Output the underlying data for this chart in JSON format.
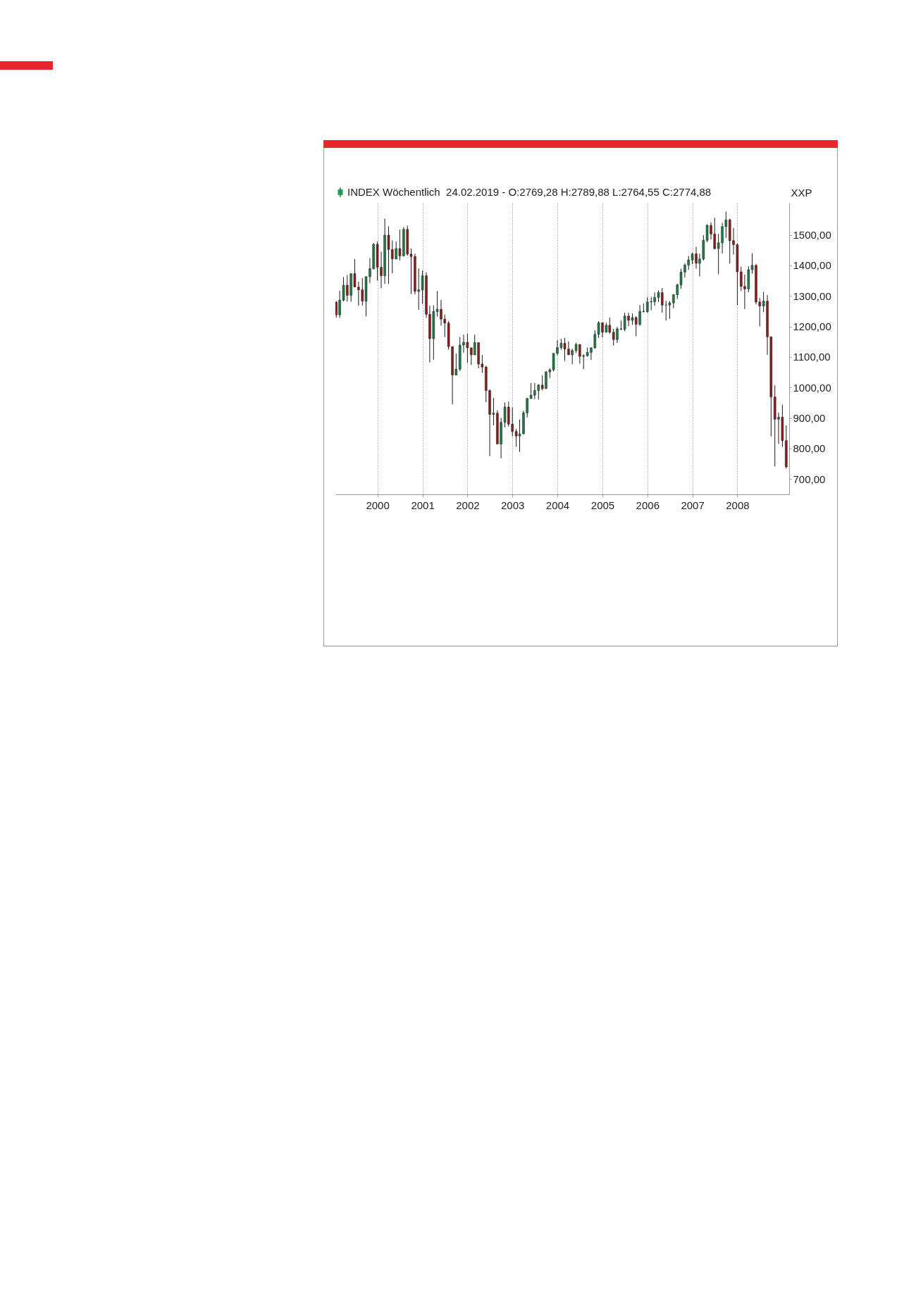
{
  "chart_data": {
    "type": "candlestick",
    "title": "INDEX Wöchentlich  24.02.2019 - O:2769,28 H:2789,88 L:2764,55 C:2774,88",
    "ylabel": "XXP",
    "xlim": [
      "1999-01-25",
      "2009-02-25"
    ],
    "xticks": [
      {
        "value": "2000",
        "label": "2000"
      },
      {
        "value": "2001",
        "label": "2001"
      },
      {
        "value": "2002",
        "label": "2002"
      },
      {
        "value": "2003",
        "label": "2003"
      },
      {
        "value": "2004",
        "label": "2004"
      },
      {
        "value": "2005",
        "label": "2005"
      },
      {
        "value": "2006",
        "label": "2006"
      },
      {
        "value": "2007",
        "label": "2007"
      },
      {
        "value": "2008",
        "label": "2008"
      }
    ],
    "ylim": [
      650,
      1605
    ],
    "yticks": [
      {
        "value": 700,
        "label": "700,00"
      },
      {
        "value": 800,
        "label": "800,00"
      },
      {
        "value": 900,
        "label": "900,00"
      },
      {
        "value": 1000,
        "label": "1000,00"
      },
      {
        "value": 1100,
        "label": "1100,00"
      },
      {
        "value": 1200,
        "label": "1200,00"
      },
      {
        "value": 1300,
        "label": "1300,00"
      },
      {
        "value": 1400,
        "label": "1400,00"
      },
      {
        "value": 1500,
        "label": "1500,00"
      }
    ],
    "grid": "x",
    "x": [
      "1999-02",
      "1999-03",
      "1999-04",
      "1999-05",
      "1999-06",
      "1999-07",
      "1999-08",
      "1999-09",
      "1999-10",
      "1999-11",
      "1999-12",
      "2000-01",
      "2000-02",
      "2000-03",
      "2000-04",
      "2000-05",
      "2000-06",
      "2000-07",
      "2000-08",
      "2000-09",
      "2000-10",
      "2000-11",
      "2000-12",
      "2001-01",
      "2001-02",
      "2001-03",
      "2001-04",
      "2001-05",
      "2001-06",
      "2001-07",
      "2001-08",
      "2001-09",
      "2001-10",
      "2001-11",
      "2001-12",
      "2002-01",
      "2002-02",
      "2002-03",
      "2002-04",
      "2002-05",
      "2002-06",
      "2002-07",
      "2002-08",
      "2002-09",
      "2002-10",
      "2002-11",
      "2002-12",
      "2003-01",
      "2003-02",
      "2003-03",
      "2003-04",
      "2003-05",
      "2003-06",
      "2003-07",
      "2003-08",
      "2003-09",
      "2003-10",
      "2003-11",
      "2003-12",
      "2004-01",
      "2004-02",
      "2004-03",
      "2004-04",
      "2004-05",
      "2004-06",
      "2004-07",
      "2004-08",
      "2004-09",
      "2004-10",
      "2004-11",
      "2004-12",
      "2005-01",
      "2005-02",
      "2005-03",
      "2005-04",
      "2005-05",
      "2005-06",
      "2005-07",
      "2005-08",
      "2005-09",
      "2005-10",
      "2005-11",
      "2005-12",
      "2006-01",
      "2006-02",
      "2006-03",
      "2006-04",
      "2006-05",
      "2006-06",
      "2006-07",
      "2006-08",
      "2006-09",
      "2006-10",
      "2006-11",
      "2006-12",
      "2007-01",
      "2007-02",
      "2007-03",
      "2007-04",
      "2007-05",
      "2007-06",
      "2007-07",
      "2007-08",
      "2007-09",
      "2007-10",
      "2007-11",
      "2007-12",
      "2008-01",
      "2008-02",
      "2008-03",
      "2008-04",
      "2008-05",
      "2008-06",
      "2008-07",
      "2008-08",
      "2008-09",
      "2008-10",
      "2008-11",
      "2008-12",
      "2009-01",
      "2009-02"
    ],
    "ohlc": [
      [
        1280,
        1283,
        1229,
        1238
      ],
      [
        1238,
        1317,
        1228,
        1286
      ],
      [
        1286,
        1362,
        1282,
        1335
      ],
      [
        1335,
        1368,
        1281,
        1302
      ],
      [
        1302,
        1373,
        1281,
        1373
      ],
      [
        1373,
        1421,
        1329,
        1329
      ],
      [
        1329,
        1347,
        1268,
        1320
      ],
      [
        1320,
        1358,
        1268,
        1283
      ],
      [
        1283,
        1364,
        1233,
        1363
      ],
      [
        1363,
        1424,
        1342,
        1389
      ],
      [
        1389,
        1473,
        1387,
        1469
      ],
      [
        1469,
        1478,
        1350,
        1394
      ],
      [
        1394,
        1445,
        1325,
        1366
      ],
      [
        1366,
        1553,
        1339,
        1499
      ],
      [
        1499,
        1528,
        1339,
        1452
      ],
      [
        1452,
        1482,
        1374,
        1421
      ],
      [
        1421,
        1478,
        1420,
        1455
      ],
      [
        1455,
        1517,
        1416,
        1431
      ],
      [
        1431,
        1525,
        1430,
        1518
      ],
      [
        1518,
        1530,
        1432,
        1437
      ],
      [
        1437,
        1455,
        1306,
        1429
      ],
      [
        1429,
        1438,
        1305,
        1315
      ],
      [
        1315,
        1390,
        1254,
        1320
      ],
      [
        1320,
        1383,
        1274,
        1366
      ],
      [
        1366,
        1377,
        1228,
        1240
      ],
      [
        1240,
        1268,
        1082,
        1160
      ],
      [
        1160,
        1269,
        1091,
        1249
      ],
      [
        1249,
        1316,
        1232,
        1256
      ],
      [
        1256,
        1287,
        1203,
        1224
      ],
      [
        1224,
        1239,
        1165,
        1211
      ],
      [
        1211,
        1218,
        1124,
        1134
      ],
      [
        1134,
        1135,
        945,
        1041
      ],
      [
        1041,
        1111,
        1040,
        1060
      ],
      [
        1060,
        1165,
        1054,
        1139
      ],
      [
        1139,
        1173,
        1114,
        1148
      ],
      [
        1148,
        1176,
        1081,
        1130
      ],
      [
        1130,
        1131,
        1074,
        1107
      ],
      [
        1107,
        1173,
        1106,
        1147
      ],
      [
        1147,
        1147,
        1063,
        1077
      ],
      [
        1077,
        1107,
        1048,
        1067
      ],
      [
        1067,
        1071,
        952,
        990
      ],
      [
        990,
        994,
        775,
        912
      ],
      [
        912,
        966,
        876,
        916
      ],
      [
        916,
        925,
        815,
        815
      ],
      [
        815,
        901,
        768,
        886
      ],
      [
        886,
        951,
        869,
        936
      ],
      [
        936,
        954,
        872,
        880
      ],
      [
        880,
        935,
        840,
        856
      ],
      [
        856,
        864,
        806,
        841
      ],
      [
        841,
        895,
        789,
        848
      ],
      [
        848,
        924,
        847,
        917
      ],
      [
        917,
        966,
        902,
        964
      ],
      [
        964,
        1015,
        963,
        975
      ],
      [
        975,
        1015,
        962,
        990
      ],
      [
        990,
        1011,
        960,
        1008
      ],
      [
        1008,
        1040,
        990,
        996
      ],
      [
        996,
        1054,
        996,
        1051
      ],
      [
        1051,
        1063,
        1031,
        1058
      ],
      [
        1058,
        1112,
        1053,
        1112
      ],
      [
        1112,
        1155,
        1105,
        1131
      ],
      [
        1131,
        1159,
        1124,
        1145
      ],
      [
        1145,
        1163,
        1087,
        1126
      ],
      [
        1126,
        1151,
        1107,
        1107
      ],
      [
        1107,
        1127,
        1076,
        1121
      ],
      [
        1121,
        1146,
        1113,
        1141
      ],
      [
        1141,
        1141,
        1078,
        1102
      ],
      [
        1102,
        1109,
        1060,
        1104
      ],
      [
        1104,
        1131,
        1101,
        1115
      ],
      [
        1115,
        1131,
        1090,
        1130
      ],
      [
        1130,
        1188,
        1127,
        1174
      ],
      [
        1174,
        1217,
        1162,
        1212
      ],
      [
        1212,
        1212,
        1164,
        1181
      ],
      [
        1181,
        1212,
        1180,
        1204
      ],
      [
        1204,
        1229,
        1176,
        1181
      ],
      [
        1181,
        1192,
        1137,
        1157
      ],
      [
        1157,
        1199,
        1146,
        1192
      ],
      [
        1192,
        1219,
        1188,
        1191
      ],
      [
        1191,
        1245,
        1184,
        1234
      ],
      [
        1234,
        1245,
        1201,
        1220
      ],
      [
        1220,
        1243,
        1205,
        1229
      ],
      [
        1229,
        1233,
        1168,
        1207
      ],
      [
        1207,
        1270,
        1202,
        1249
      ],
      [
        1249,
        1275,
        1246,
        1248
      ],
      [
        1248,
        1295,
        1245,
        1280
      ],
      [
        1280,
        1297,
        1253,
        1281
      ],
      [
        1281,
        1311,
        1268,
        1295
      ],
      [
        1295,
        1318,
        1280,
        1311
      ],
      [
        1311,
        1326,
        1245,
        1270
      ],
      [
        1270,
        1284,
        1219,
        1270
      ],
      [
        1270,
        1283,
        1225,
        1277
      ],
      [
        1277,
        1306,
        1260,
        1304
      ],
      [
        1304,
        1340,
        1290,
        1336
      ],
      [
        1336,
        1389,
        1323,
        1378
      ],
      [
        1378,
        1407,
        1360,
        1401
      ],
      [
        1401,
        1431,
        1385,
        1418
      ],
      [
        1418,
        1441,
        1404,
        1438
      ],
      [
        1438,
        1461,
        1389,
        1407
      ],
      [
        1407,
        1438,
        1364,
        1421
      ],
      [
        1421,
        1499,
        1416,
        1482
      ],
      [
        1482,
        1535,
        1476,
        1531
      ],
      [
        1531,
        1541,
        1485,
        1503
      ],
      [
        1503,
        1556,
        1452,
        1455
      ],
      [
        1455,
        1503,
        1371,
        1474
      ],
      [
        1474,
        1539,
        1439,
        1527
      ],
      [
        1527,
        1576,
        1490,
        1549
      ],
      [
        1549,
        1553,
        1406,
        1481
      ],
      [
        1481,
        1523,
        1435,
        1468
      ],
      [
        1468,
        1471,
        1270,
        1379
      ],
      [
        1379,
        1396,
        1316,
        1331
      ],
      [
        1331,
        1370,
        1257,
        1323
      ],
      [
        1323,
        1397,
        1312,
        1386
      ],
      [
        1386,
        1440,
        1373,
        1400
      ],
      [
        1400,
        1405,
        1272,
        1280
      ],
      [
        1280,
        1293,
        1200,
        1267
      ],
      [
        1267,
        1313,
        1247,
        1283
      ],
      [
        1283,
        1303,
        1107,
        1166
      ],
      [
        1166,
        1167,
        840,
        969
      ],
      [
        969,
        1007,
        741,
        896
      ],
      [
        896,
        918,
        815,
        903
      ],
      [
        903,
        943,
        805,
        826
      ],
      [
        826,
        876,
        735,
        740
      ]
    ]
  }
}
